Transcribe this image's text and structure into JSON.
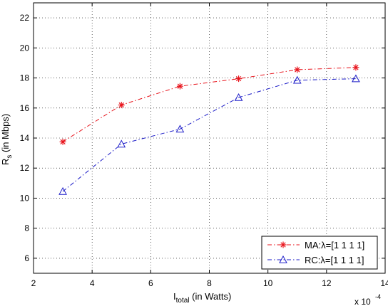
{
  "chart_data": {
    "type": "line",
    "xlabel": {
      "main": "I",
      "sub": "total",
      "rest": " (in Watts)"
    },
    "ylabel": {
      "main": "R",
      "sub": "s",
      "rest": " (in Mbps)"
    },
    "x_multiplier": "x 10",
    "x_multiplier_exp": "-4",
    "xlim": [
      2,
      14
    ],
    "ylim": [
      5,
      23
    ],
    "xticks": [
      "2",
      "4",
      "6",
      "8",
      "10",
      "12",
      "14"
    ],
    "yticks": [
      "6",
      "8",
      "10",
      "12",
      "14",
      "16",
      "18",
      "20",
      "22"
    ],
    "grid": true,
    "legend_position": "bottom-right",
    "series": [
      {
        "name": "MA:λ=[1 1 1 1]",
        "color": "#e8141c",
        "marker": "star",
        "line_style": "dash-dot",
        "x": [
          3,
          5,
          7,
          9,
          11,
          13
        ],
        "y": [
          13.75,
          16.2,
          17.45,
          17.95,
          18.55,
          18.7
        ]
      },
      {
        "name": "RC:λ=[1 1 1 1]",
        "color": "#1c1cc8",
        "marker": "triangle",
        "line_style": "dash-dot",
        "x": [
          3,
          5,
          7,
          9,
          11,
          13
        ],
        "y": [
          10.45,
          13.6,
          14.6,
          16.7,
          17.85,
          17.95
        ]
      }
    ]
  }
}
